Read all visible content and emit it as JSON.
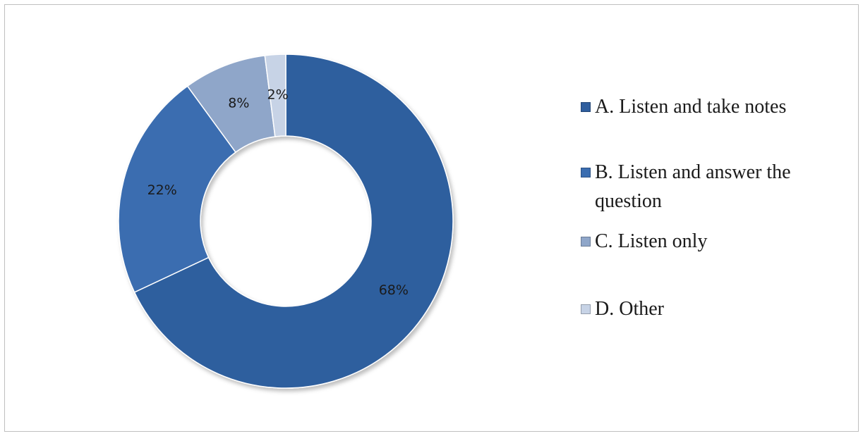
{
  "chart_data": {
    "type": "pie",
    "variant": "donut",
    "categories": [
      "A. Listen and take notes",
      "B. Listen and answer the question",
      "C. Listen only",
      "D. Other"
    ],
    "values": [
      68,
      22,
      8,
      2
    ],
    "value_labels": [
      "68%",
      "22%",
      "8%",
      "2%"
    ],
    "colors": [
      "#2f5e9e",
      "#3a6db0",
      "#8fa6c9",
      "#c7d3e6"
    ],
    "legend": "right",
    "start_angle_deg": 0,
    "direction": "clockwise"
  }
}
